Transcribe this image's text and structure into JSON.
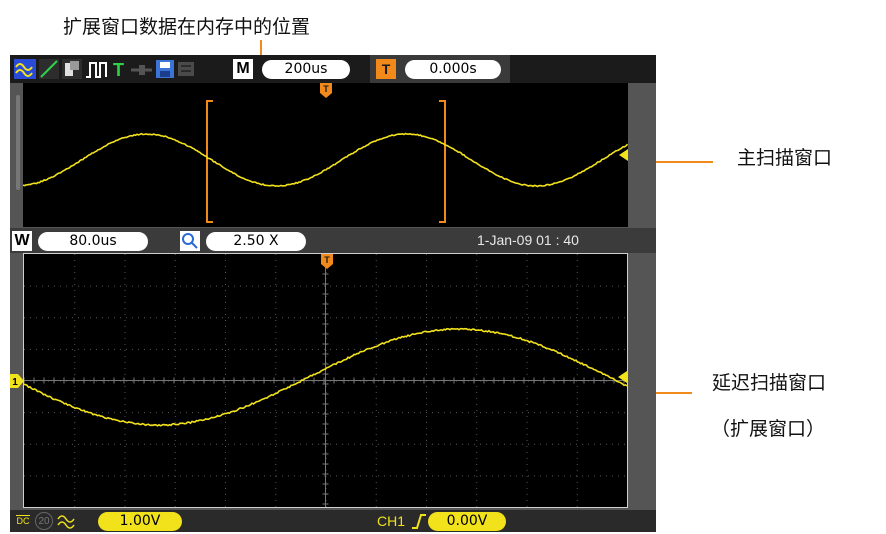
{
  "annotations": {
    "top": "扩展窗口数据在内存中的位置",
    "main_window": "主扫描窗口",
    "delayed_window_line1": "延迟扫描窗口",
    "delayed_window_line2": "（扩展窗口）"
  },
  "top_bar": {
    "icons": [
      "waveform-icon",
      "cursor-icon",
      "invert-icon",
      "pulse-icon",
      "trigger-T-icon",
      "probe-icon",
      "save-icon",
      "print-icon"
    ],
    "trigger_letter": "T",
    "mode_badge": "M",
    "timebase": "200us",
    "trig_badge": "T",
    "trigger_delay": "0.000s"
  },
  "middle_bar": {
    "window_badge": "W",
    "window_timebase": "80.0us",
    "zoom_factor": "2.50 X",
    "datetime": "1-Jan-09 01 : 40"
  },
  "bottom_bar": {
    "coupling": "DC",
    "bw_limit": "20",
    "volts_div": "1.00V",
    "trigger_source": "CH1",
    "trigger_level": "0.00V"
  },
  "markers": {
    "trigger_marker": "T",
    "channel_marker": "1"
  },
  "colors": {
    "trace": "#f2e21c",
    "accent_orange": "#f28a1b",
    "screen_bg": "#000000",
    "bezel": "#555555"
  }
}
